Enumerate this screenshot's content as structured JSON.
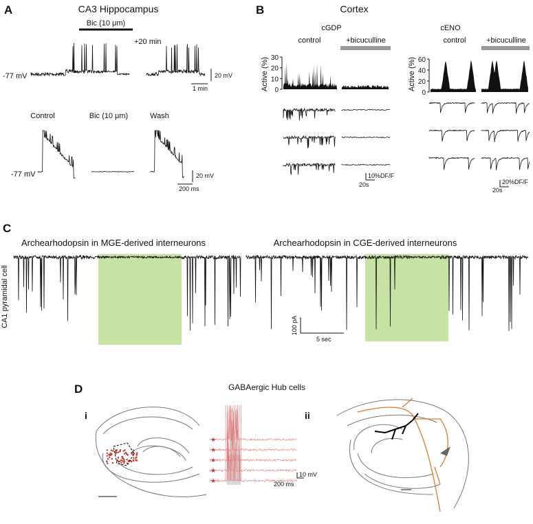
{
  "panel_a": {
    "label": "A",
    "title": "CA3 Hippocampus",
    "drug": "Bic (10 μm)",
    "late_note": "+20 min",
    "holding": "-77 mV",
    "scale_v": "20 mV",
    "scale_t": "1 min",
    "conditions": [
      "Control",
      "Bic (10 μm)",
      "Wash"
    ],
    "holding_2": "-77 mV",
    "scale_v_2": "20 mV",
    "scale_t_2": "200 ms"
  },
  "panel_b": {
    "label": "B",
    "title": "Cortex",
    "left": {
      "title": "cGDP",
      "control": "control",
      "drug": "+bicuculline",
      "axis_label": "Active (%)",
      "ticks": [
        0,
        10,
        20,
        30
      ],
      "scale_v": "10%DF/F",
      "scale_t": "20s"
    },
    "right": {
      "title": "cENO",
      "control": "control",
      "drug": "+bicuculline",
      "axis_label": "Active (%)",
      "ticks": [
        0,
        20,
        40,
        60
      ],
      "scale_v": "20%DF/F",
      "scale_t": "20s"
    }
  },
  "panel_c": {
    "label": "C",
    "titles": [
      "Archearhodopsin in MGE-derived interneurons",
      "Archearhodopsin in CGE-derived interneurons"
    ],
    "cell": "CA1 pyramidal cell",
    "scale_i": "100 pA",
    "scale_t": "5 sec"
  },
  "panel_d": {
    "label": "D",
    "title": "GABAergic Hub cells",
    "sub_i": "i",
    "sub_ii": "ii",
    "scale_v": "10 mV",
    "scale_t": "200 ms"
  }
}
